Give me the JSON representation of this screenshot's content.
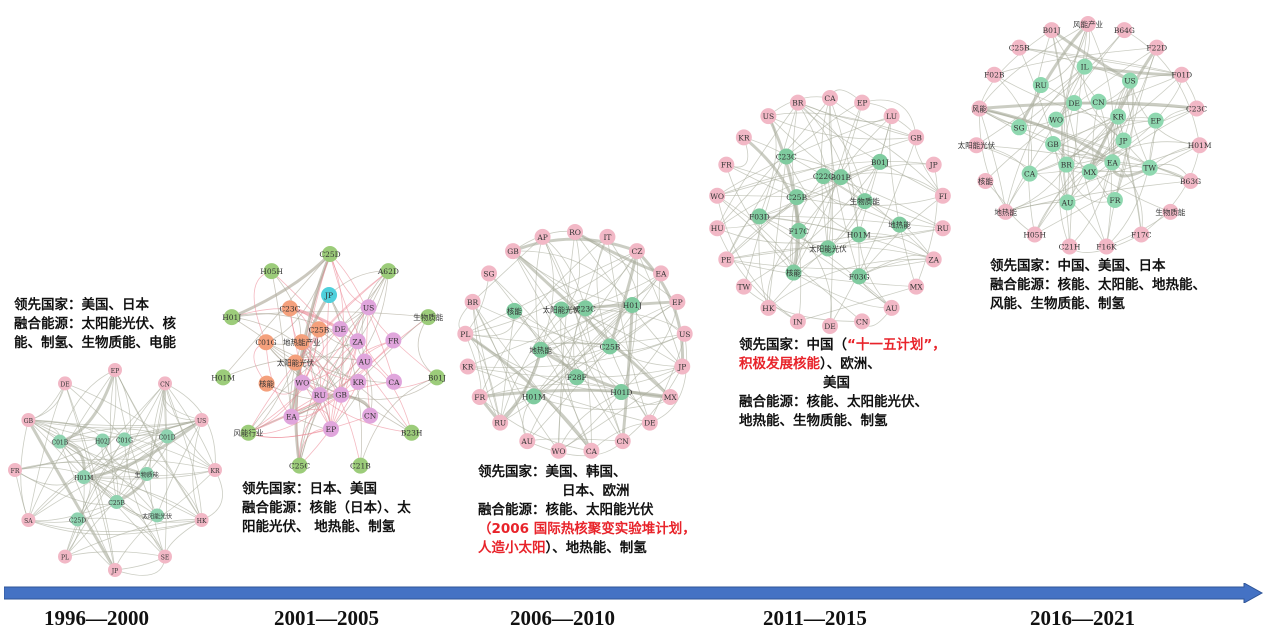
{
  "periods": [
    {
      "year": "1996—2000",
      "leading_label": "领先国家：",
      "leading": "美国、日本",
      "fusion_label": "融合能源：",
      "fusion_l1": "太阳能光伏、核",
      "fusion_l2": "能、制氢、生物质能、电能",
      "network": {
        "groups": [
          {
            "color": "#f2b8c6",
            "nodes": [
              "EP",
              "CN",
              "US",
              "KR",
              "HK",
              "SE",
              "JP",
              "PL",
              "SA",
              "FR",
              "GB",
              "DE"
            ]
          },
          {
            "color": "#8fd3b0",
            "nodes": [
              "C01G",
              "C01D",
              "生物质能",
              "太阳能光伏",
              "C25B",
              "C25D",
              "H01M",
              "C01B",
              "H02J"
            ]
          }
        ],
        "edge_colors": [
          "#a9ab9b"
        ]
      }
    },
    {
      "year": "2001—2005",
      "leading_label": "领先国家：",
      "leading": "日本、美国",
      "fusion_label": "融合能源：",
      "fusion_l1": "核能（日本）、太",
      "fusion_l2": "阳能光伏、 地热能、制氢",
      "network": {
        "groups": [
          {
            "color": "#9ccc7a",
            "nodes": [
              "C25D",
              "A62D",
              "生物质能",
              "B01J",
              "B23H",
              "C21B",
              "C25C",
              "风能行业",
              "H01M",
              "H01J",
              "H05H"
            ]
          },
          {
            "color": "#e0a5dc",
            "nodes": [
              "DE",
              "US",
              "ZA",
              "FR",
              "AU",
              "CA",
              "KR",
              "CN",
              "GB",
              "EP",
              "RU",
              "EA",
              "WO"
            ]
          },
          {
            "color": "#f4a07c",
            "nodes": [
              "核能",
              "太阳能光伏",
              "C01G",
              "地热能产业",
              "C23C",
              "C25B"
            ]
          },
          {
            "color": "#4fd0dc",
            "nodes": [
              "JP"
            ]
          }
        ],
        "edge_colors": [
          "#a9a493",
          "#ec8a98"
        ]
      }
    },
    {
      "year": "2006—2010",
      "leading_label": "领先国家：",
      "leading": "美国、韩国、",
      "leading2": "日本、欧洲",
      "fusion_label": "融合能源：",
      "fusion_l1": "核能、太阳能光伏",
      "fusion_red": "（2006 国际热核聚变实验堆计划，",
      "fusion_red2": "人造小太阳",
      "fusion_l2": "）、地热能、制氢",
      "network": {
        "groups": [
          {
            "color": "#f2b8c6",
            "nodes": [
              "RO",
              "IT",
              "CZ",
              "EA",
              "EP",
              "US",
              "JP",
              "MX",
              "DE",
              "CN",
              "CA",
              "WO",
              "AU",
              "RU",
              "FR",
              "KR",
              "PL",
              "BR",
              "SG",
              "GB",
              "AP"
            ]
          },
          {
            "color": "#7fcb9f",
            "nodes": [
              "C23C",
              "H01J",
              "C25B",
              "H01D",
              "F28F",
              "H01M",
              "地热能",
              "核能",
              "太阳能光伏"
            ]
          }
        ],
        "edge_colors": [
          "#a9ab9b"
        ]
      }
    },
    {
      "year": "2011—2015",
      "leading_label": "领先国家：",
      "leading_pre": "中国（",
      "leading_red": "“十一五计划”，",
      "leading_red2": "积极发展核能",
      "leading_post": "）、欧洲、",
      "leading2": "美国",
      "fusion_label": "融合能源：",
      "fusion_l1": "核能、太阳能光伏、",
      "fusion_l2": "地热能、生物质能、制氢",
      "network": {
        "groups": [
          {
            "color": "#f2b8c6",
            "nodes": [
              "CA",
              "EP",
              "LU",
              "GB",
              "JP",
              "FI",
              "RU",
              "ZA",
              "MX",
              "AU",
              "CN",
              "DE",
              "IN",
              "HK",
              "TW",
              "PE",
              "HU",
              "WO",
              "FR",
              "KR",
              "US",
              "BR"
            ]
          },
          {
            "color": "#7fcb9f",
            "nodes": [
              "B01B",
              "B01J",
              "生物质能",
              "地热能",
              "H01M",
              "F03G",
              "太阳能光伏",
              "核能",
              "F17C",
              "F03D",
              "C25B",
              "C23C",
              "C22C"
            ]
          }
        ],
        "edge_colors": [
          "#a9ab9b"
        ]
      }
    },
    {
      "year": "2016—2021",
      "leading_label": "领先国家：",
      "leading": "中国、美国、日本",
      "fusion_label": "融合能源：",
      "fusion_l1": "核能、太阳能、地热能、",
      "fusion_l2": "风能、生物质能、制氢",
      "network": {
        "groups": [
          {
            "color": "#f2b8c6",
            "nodes": [
              "风能产业",
              "B64G",
              "F22D",
              "F01D",
              "C23C",
              "H01M",
              "B63G",
              "生物质能",
              "F17C",
              "F16K",
              "C21H",
              "H05H",
              "地热能",
              "核能",
              "太阳能光伏",
              "风能",
              "F02B",
              "C25B",
              "B01J"
            ]
          },
          {
            "color": "#8fd8b0",
            "nodes": [
              "CN",
              "US",
              "KR",
              "EP",
              "JP",
              "TW",
              "EA",
              "FR",
              "MX",
              "AU",
              "BR",
              "CA",
              "GB",
              "SG",
              "WO",
              "RU",
              "DE",
              "IL"
            ]
          }
        ],
        "edge_colors": [
          "#a9ab9b"
        ]
      }
    }
  ],
  "colors": {
    "timeline": "#4472c4",
    "highlight": "#e8232a"
  }
}
